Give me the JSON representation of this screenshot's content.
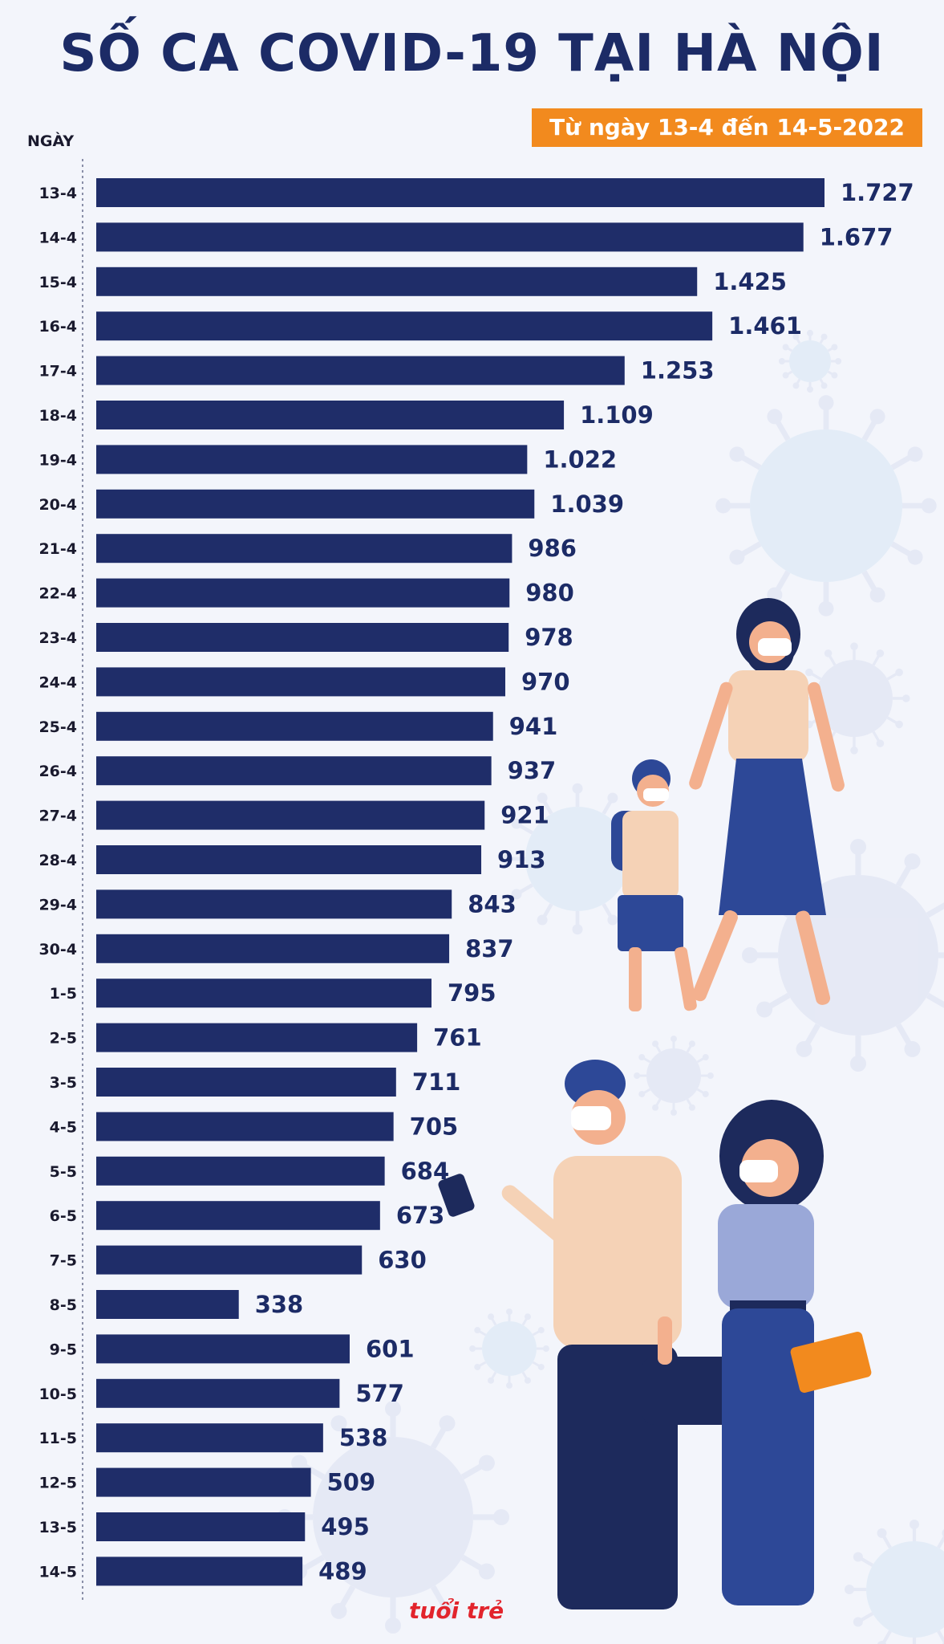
{
  "chart_data": {
    "type": "bar",
    "orientation": "horizontal",
    "title": "SỐ CA COVID-19 TẠI HÀ NỘI",
    "subtitle": "Từ ngày 13-4 đến 14-5-2022",
    "ylabel": "NGÀY",
    "xlabel": "",
    "categories": [
      "13-4",
      "14-4",
      "15-4",
      "16-4",
      "17-4",
      "18-4",
      "19-4",
      "20-4",
      "21-4",
      "22-4",
      "23-4",
      "24-4",
      "25-4",
      "26-4",
      "27-4",
      "28-4",
      "29-4",
      "30-4",
      "1-5",
      "2-5",
      "3-5",
      "4-5",
      "5-5",
      "6-5",
      "7-5",
      "8-5",
      "9-5",
      "10-5",
      "11-5",
      "12-5",
      "13-5",
      "14-5"
    ],
    "values": [
      1727,
      1677,
      1425,
      1461,
      1253,
      1109,
      1022,
      1039,
      986,
      980,
      978,
      970,
      941,
      937,
      921,
      913,
      843,
      837,
      795,
      761,
      711,
      705,
      684,
      673,
      630,
      338,
      601,
      577,
      538,
      509,
      495,
      489
    ],
    "value_labels": [
      "1.727",
      "1.677",
      "1.425",
      "1.461",
      "1.253",
      "1.109",
      "1.022",
      "1.039",
      "986",
      "980",
      "978",
      "970",
      "941",
      "937",
      "921",
      "913",
      "843",
      "837",
      "795",
      "761",
      "711",
      "705",
      "684",
      "673",
      "630",
      "338",
      "601",
      "577",
      "538",
      "509",
      "495",
      "489"
    ],
    "xlim": [
      0,
      1727
    ],
    "grid": false,
    "bar_color": "#1f2d69",
    "label_color": "#1c2b66"
  },
  "colors": {
    "title": "#1c2b66",
    "badge": "#f28a1e",
    "background": "#f3f5fb",
    "logo": "#e2242c"
  },
  "logo": {
    "text": "tuổi trẻ"
  },
  "illustration": {
    "icons": [
      "virus-icon",
      "people-with-masks-illustration"
    ]
  }
}
